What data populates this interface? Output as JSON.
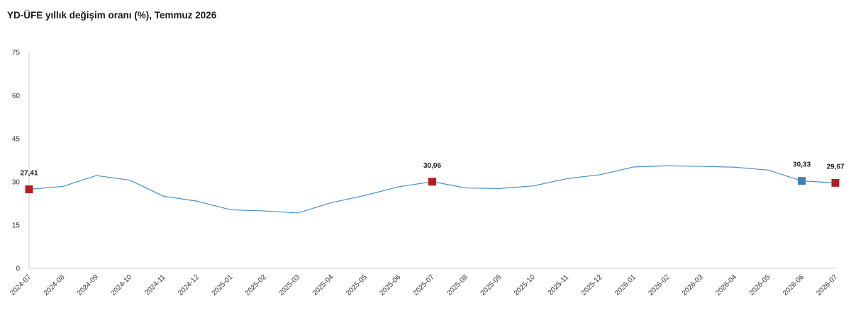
{
  "title": "YD-ÜFE yıllık değişim oranı (%), Temmuz 2026",
  "chart_data": {
    "type": "line",
    "title": "YD-ÜFE yıllık değişim oranı (%), Temmuz 2026",
    "xlabel": "",
    "ylabel": "",
    "ylim": [
      0,
      75
    ],
    "yticks": [
      0,
      15,
      30,
      45,
      60,
      75
    ],
    "grid": false,
    "categories": [
      "2024-07",
      "2024-08",
      "2024-09",
      "2024-10",
      "2024-11",
      "2024-12",
      "2025-01",
      "2025-02",
      "2025-03",
      "2025-04",
      "2025-05",
      "2025-06",
      "2025-07",
      "2025-08",
      "2025-09",
      "2025-10",
      "2025-11",
      "2025-12",
      "2026-01",
      "2026-02",
      "2026-03",
      "2026-04",
      "2026-05",
      "2026-06",
      "2026-07"
    ],
    "series": [
      {
        "values": [
          27.41,
          28.4,
          32.2,
          30.6,
          25.0,
          23.3,
          20.3,
          19.9,
          19.2,
          22.8,
          25.3,
          28.3,
          30.06,
          27.9,
          27.7,
          28.6,
          31.1,
          32.5,
          35.2,
          35.6,
          35.4,
          35.1,
          34.1,
          30.33,
          29.67
        ],
        "color": "#4a90c8"
      }
    ],
    "highlights": [
      {
        "category": "2024-07",
        "value": 27.41,
        "label": "27,41",
        "color": "#b71c1c"
      },
      {
        "category": "2025-07",
        "value": 30.06,
        "label": "30,06",
        "color": "#b71c1c"
      },
      {
        "category": "2026-06",
        "value": 30.33,
        "label": "30,33",
        "color": "#3a7fc1"
      },
      {
        "category": "2026-07",
        "value": 29.67,
        "label": "29,67",
        "color": "#b71c1c"
      }
    ],
    "axis_color": "#cccccc"
  }
}
